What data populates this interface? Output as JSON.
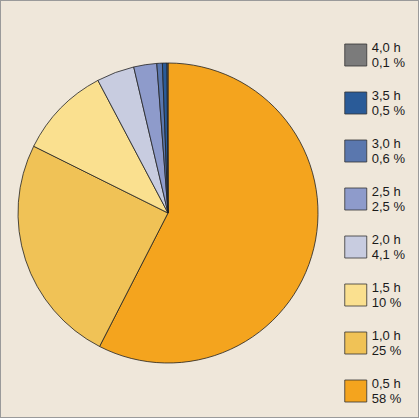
{
  "chart_data": {
    "type": "pie",
    "categories": [
      "0,5 h",
      "1,0 h",
      "1,5 h",
      "2,0 h",
      "2,5 h",
      "3,0 h",
      "3,5 h",
      "4,0 h"
    ],
    "values": [
      58,
      25,
      10,
      4.1,
      2.5,
      0.6,
      0.5,
      0.1
    ],
    "value_labels": [
      "58 %",
      "25 %",
      "10 %",
      "4,1 %",
      "2,5 %",
      "0,6 %",
      "0,5 %",
      "0,1 %"
    ],
    "colors": [
      "#f4a41e",
      "#f0c256",
      "#fae08f",
      "#c8cce0",
      "#8e9bcb",
      "#5a77ae",
      "#2a5b98",
      "#7b7b7b"
    ],
    "legend": "right"
  }
}
